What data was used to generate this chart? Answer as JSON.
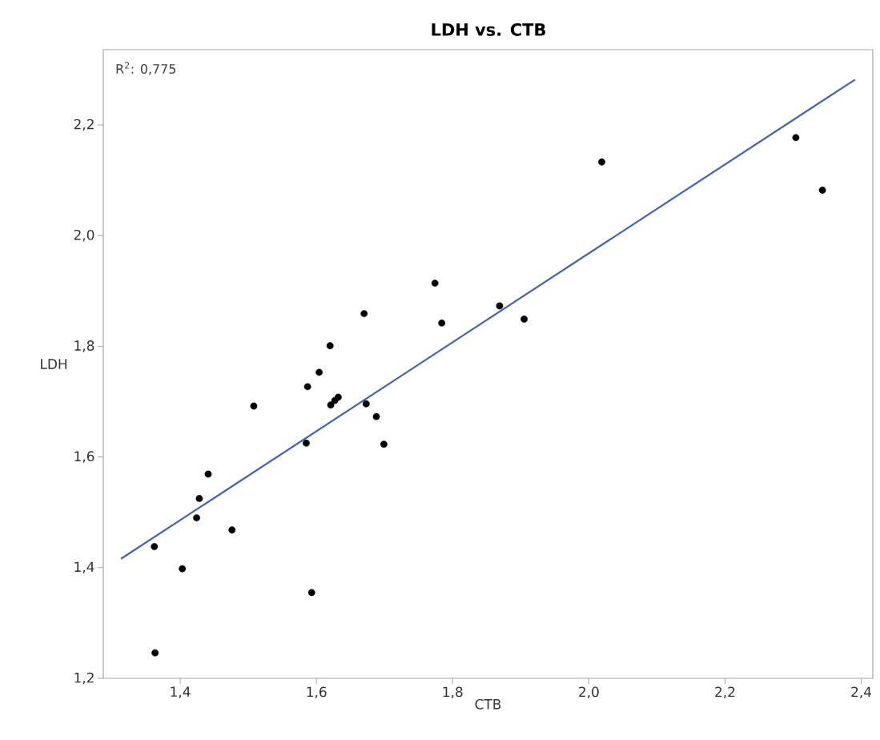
{
  "chart_data": {
    "type": "scatter",
    "title": "LDH vs. CTB",
    "xlabel": "CTB",
    "ylabel": "LDH",
    "annotations": [
      "R$^{2}$: 0,775"
    ],
    "xlim": [
      1.287,
      2.417
    ],
    "ylim": [
      1.2,
      2.336
    ],
    "xticks": [
      {
        "value": 1.4,
        "label": "1,4"
      },
      {
        "value": 1.6,
        "label": "1,6"
      },
      {
        "value": 1.8,
        "label": "1,8"
      },
      {
        "value": 2.0,
        "label": "2,0"
      },
      {
        "value": 2.2,
        "label": "2,2"
      },
      {
        "value": 2.4,
        "label": "2,4"
      }
    ],
    "yticks": [
      {
        "value": 1.2,
        "label": "1,2"
      },
      {
        "value": 1.4,
        "label": "1,4"
      },
      {
        "value": 1.6,
        "label": "1,6"
      },
      {
        "value": 1.8,
        "label": "1,8"
      },
      {
        "value": 2.0,
        "label": "2,0"
      },
      {
        "value": 2.2,
        "label": "2,2"
      }
    ],
    "series": [
      {
        "color": "#000000",
        "marker": "circle",
        "x": [
          1.362,
          1.363,
          1.403,
          1.424,
          1.428,
          1.441,
          1.476,
          1.508,
          1.585,
          1.587,
          1.593,
          1.604,
          1.62,
          1.621,
          1.627,
          1.632,
          1.673,
          1.688,
          1.699,
          1.67,
          1.774,
          1.784,
          1.869,
          1.905,
          2.019,
          2.304,
          2.343
        ],
        "values": [
          1.438,
          1.246,
          1.398,
          1.49,
          1.525,
          1.569,
          1.468,
          1.692,
          1.625,
          1.727,
          1.355,
          1.753,
          1.801,
          1.694,
          1.702,
          1.708,
          1.696,
          1.673,
          1.623,
          1.859,
          1.914,
          1.842,
          1.873,
          1.849,
          2.133,
          2.177,
          2.082
        ]
      },
      {
        "type": "line",
        "color": "#4563ac",
        "marker": "none",
        "x": [
          1.313,
          2.391
        ],
        "values": [
          1.416,
          2.282
        ]
      }
    ]
  }
}
